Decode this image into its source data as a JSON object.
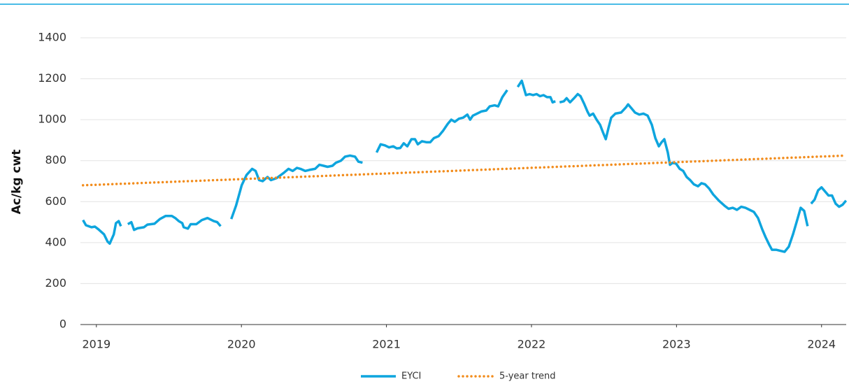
{
  "chart_data": {
    "type": "line",
    "y_label": "Ac/kg cwt",
    "xlim": [
      2018.89,
      2024.17
    ],
    "xticks": [
      2019,
      2020,
      2021,
      2022,
      2023,
      2024
    ],
    "ylim": [
      0,
      1400
    ],
    "yticks": [
      0,
      200,
      400,
      600,
      800,
      1000,
      1200,
      1400
    ],
    "grid": true,
    "legend": "bottom",
    "series": [
      {
        "name": "EYCI",
        "color": "#0ea5de",
        "style": "solid",
        "x": [
          2018.908,
          2018.928,
          2018.966,
          2018.99,
          2019.014,
          2019.053,
          2019.077,
          2019.092,
          2019.12,
          2019.135,
          2019.154,
          2019.169,
          2019.19,
          2019.217,
          2019.241,
          2019.26,
          2019.284,
          2019.328,
          2019.352,
          2019.4,
          2019.438,
          2019.477,
          2019.52,
          2019.544,
          2019.568,
          2019.592,
          2019.602,
          2019.631,
          2019.65,
          2019.689,
          2019.727,
          2019.766,
          2019.809,
          2019.833,
          2019.857,
          2019.89,
          2019.93,
          2019.963,
          2020.002,
          2020.035,
          2020.074,
          2020.098,
          2020.122,
          2020.146,
          2020.18,
          2020.204,
          2020.243,
          2020.291,
          2020.325,
          2020.354,
          2020.383,
          2020.407,
          2020.44,
          2020.469,
          2020.508,
          2020.537,
          2020.566,
          2020.594,
          2020.628,
          2020.652,
          2020.686,
          2020.715,
          2020.749,
          2020.783,
          2020.807,
          2020.835,
          2020.88,
          2020.932,
          2020.96,
          2020.989,
          2021.018,
          2021.047,
          2021.071,
          2021.095,
          2021.119,
          2021.144,
          2021.172,
          2021.197,
          2021.216,
          2021.245,
          2021.278,
          2021.302,
          2021.327,
          2021.36,
          2021.389,
          2021.423,
          2021.447,
          2021.471,
          2021.5,
          2021.529,
          2021.558,
          2021.577,
          2021.596,
          2021.625,
          2021.654,
          2021.688,
          2021.712,
          2021.746,
          2021.77,
          2021.799,
          2021.833,
          2021.87,
          2021.905,
          2021.933,
          2021.962,
          2021.987,
          2022.011,
          2022.035,
          2022.059,
          2022.083,
          2022.107,
          2022.131,
          2022.146,
          2022.165,
          2022.18,
          2022.194,
          2022.223,
          2022.242,
          2022.266,
          2022.3,
          2022.319,
          2022.338,
          2022.362,
          2022.386,
          2022.401,
          2022.425,
          2022.449,
          2022.473,
          2022.492,
          2022.512,
          2022.531,
          2022.55,
          2022.579,
          2022.618,
          2022.651,
          2022.666,
          2022.69,
          2022.714,
          2022.743,
          2022.772,
          2022.801,
          2022.83,
          2022.854,
          2022.878,
          2022.897,
          2022.916,
          2022.94,
          2022.955,
          2022.974,
          2022.998,
          2023.022,
          2023.046,
          2023.07,
          2023.094,
          2023.119,
          2023.148,
          2023.172,
          2023.196,
          2023.224,
          2023.253,
          2023.292,
          2023.331,
          2023.359,
          2023.388,
          2023.417,
          2023.446,
          2023.475,
          2023.504,
          2023.533,
          2023.562,
          2023.591,
          2023.615,
          2023.639,
          2023.658,
          2023.687,
          2023.716,
          2023.745,
          2023.774,
          2023.803,
          2023.832,
          2023.856,
          2023.88,
          2023.904,
          2023.915,
          2023.928,
          2023.952,
          2023.976,
          2024.0,
          2024.024,
          2024.048,
          2024.072,
          2024.097,
          2024.121,
          2024.145,
          2024.169
        ],
        "values": [
          510,
          485,
          475,
          478,
          465,
          440,
          405,
          395,
          440,
          495,
          505,
          480,
          null,
          490,
          500,
          462,
          470,
          475,
          488,
          492,
          515,
          530,
          530,
          520,
          505,
          495,
          475,
          468,
          490,
          490,
          510,
          520,
          505,
          500,
          480,
          null,
          515,
          580,
          680,
          730,
          760,
          750,
          705,
          700,
          720,
          705,
          715,
          740,
          760,
          750,
          765,
          760,
          750,
          755,
          760,
          780,
          775,
          770,
          775,
          790,
          800,
          820,
          825,
          820,
          795,
          790,
          null,
          840,
          880,
          875,
          865,
          870,
          860,
          862,
          885,
          870,
          905,
          905,
          880,
          895,
          890,
          890,
          910,
          920,
          945,
          980,
          1000,
          990,
          1005,
          1010,
          1025,
          1000,
          1020,
          1030,
          1040,
          1045,
          1065,
          1070,
          1065,
          1110,
          1145,
          null,
          1160,
          1190,
          1120,
          1125,
          1120,
          1125,
          1115,
          1120,
          1110,
          1110,
          1085,
          1090,
          null,
          1085,
          1090,
          1105,
          1085,
          1110,
          1125,
          1115,
          1080,
          1040,
          1020,
          1030,
          1000,
          975,
          940,
          905,
          960,
          1010,
          1030,
          1035,
          1060,
          1075,
          1055,
          1035,
          1025,
          1030,
          1020,
          975,
          910,
          870,
          890,
          905,
          840,
          780,
          790,
          785,
          760,
          750,
          720,
          705,
          685,
          675,
          690,
          685,
          665,
          635,
          605,
          580,
          565,
          570,
          560,
          575,
          570,
          560,
          550,
          520,
          465,
          425,
          390,
          365,
          365,
          360,
          355,
          380,
          440,
          510,
          570,
          555,
          480,
          null,
          590,
          610,
          655,
          670,
          650,
          630,
          630,
          590,
          575,
          585,
          605
        ]
      },
      {
        "name": "5-year trend",
        "color": "#f28c1c",
        "style": "dotted",
        "x": [
          2018.908,
          2024.169
        ],
        "values": [
          680,
          825
        ]
      }
    ]
  }
}
